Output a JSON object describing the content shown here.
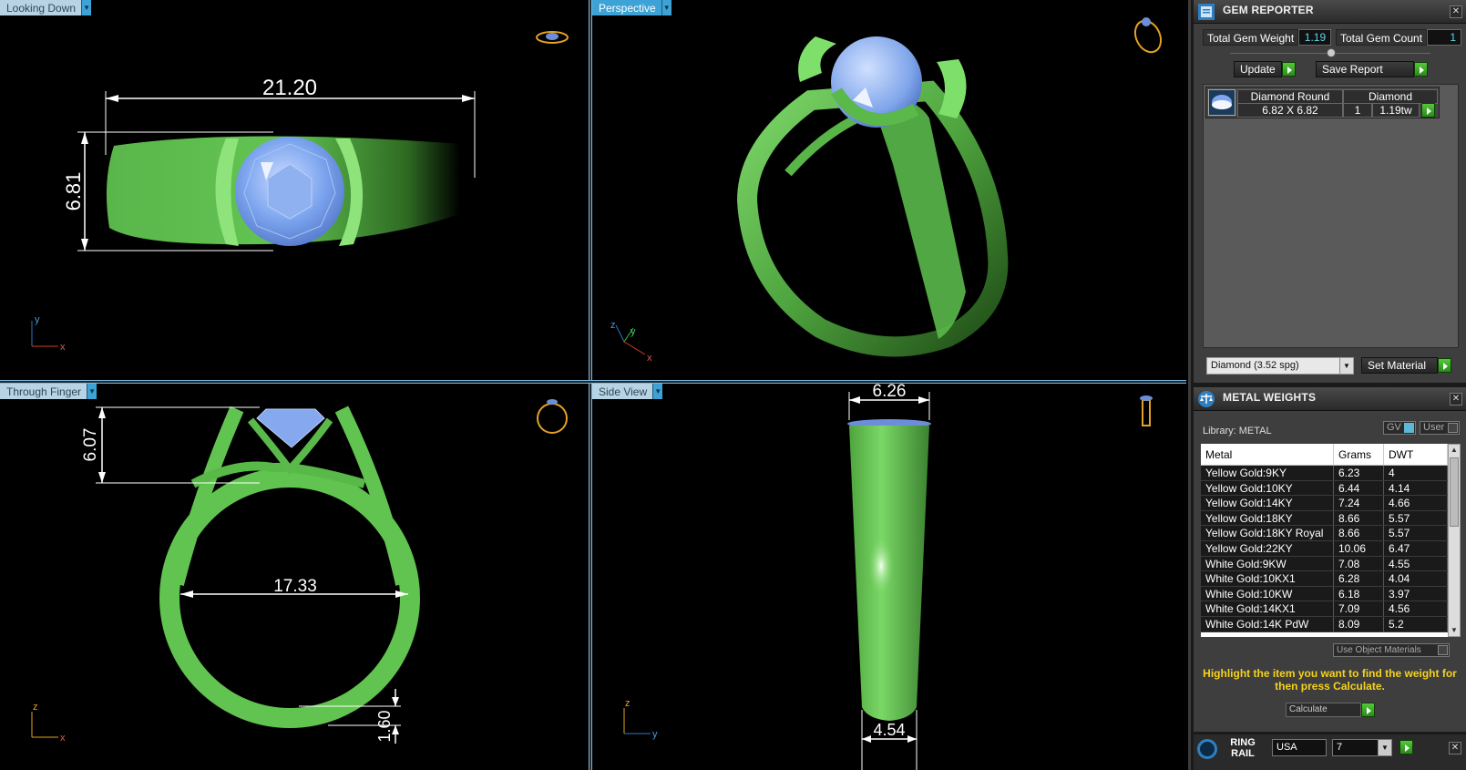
{
  "viewports": {
    "top_left": {
      "label": "Looking Down",
      "dims": {
        "width": "21.20",
        "height": "6.81"
      }
    },
    "top_right": {
      "label": "Perspective"
    },
    "bottom_left": {
      "label": "Through Finger",
      "dims": {
        "height": "6.07",
        "inner_diameter": "17.33",
        "thickness": "1.60"
      }
    },
    "bottom_right": {
      "label": "Side View",
      "dims": {
        "top_width": "6.26",
        "bottom_width": "4.54"
      }
    },
    "axes": {
      "x": "x",
      "y": "y",
      "z": "z"
    }
  },
  "gem_reporter": {
    "title": "GEM REPORTER",
    "total_gem_weight_label": "Total Gem Weight",
    "total_gem_weight": "1.19",
    "total_gem_count_label": "Total Gem Count",
    "total_gem_count": "1",
    "update_label": "Update",
    "save_report_label": "Save Report",
    "gem": {
      "shape": "Diamond Round",
      "material": "Diamond",
      "size": "6.82 X 6.82",
      "count": "1",
      "weight": "1.19tw"
    },
    "material_select": "Diamond    (3.52 spg)",
    "set_material_label": "Set Material"
  },
  "metal_weights": {
    "title": "METAL WEIGHTS",
    "library_label": "Library: METAL",
    "gv_label": "GV",
    "user_label": "User",
    "columns": [
      "Metal",
      "Grams",
      "DWT"
    ],
    "rows": [
      [
        "Yellow Gold:9KY",
        "6.23",
        "4"
      ],
      [
        "Yellow Gold:10KY",
        "6.44",
        "4.14"
      ],
      [
        "Yellow Gold:14KY",
        "7.24",
        "4.66"
      ],
      [
        "Yellow Gold:18KY",
        "8.66",
        "5.57"
      ],
      [
        "Yellow Gold:18KY Royal",
        "8.66",
        "5.57"
      ],
      [
        "Yellow Gold:22KY",
        "10.06",
        "6.47"
      ],
      [
        "White Gold:9KW",
        "7.08",
        "4.55"
      ],
      [
        "White Gold:10KX1",
        "6.28",
        "4.04"
      ],
      [
        "White Gold:10KW",
        "6.18",
        "3.97"
      ],
      [
        "White Gold:14KX1",
        "7.09",
        "4.56"
      ],
      [
        "White Gold:14K PdW",
        "8.09",
        "5.2"
      ]
    ],
    "use_object_materials_label": "Use Object Materials",
    "hint": "Highlight the item you want to find the weight for then press Calculate.",
    "calculate_label": "Calculate"
  },
  "ring_rail": {
    "title": "RING RAIL",
    "country": "USA",
    "size": "7"
  }
}
